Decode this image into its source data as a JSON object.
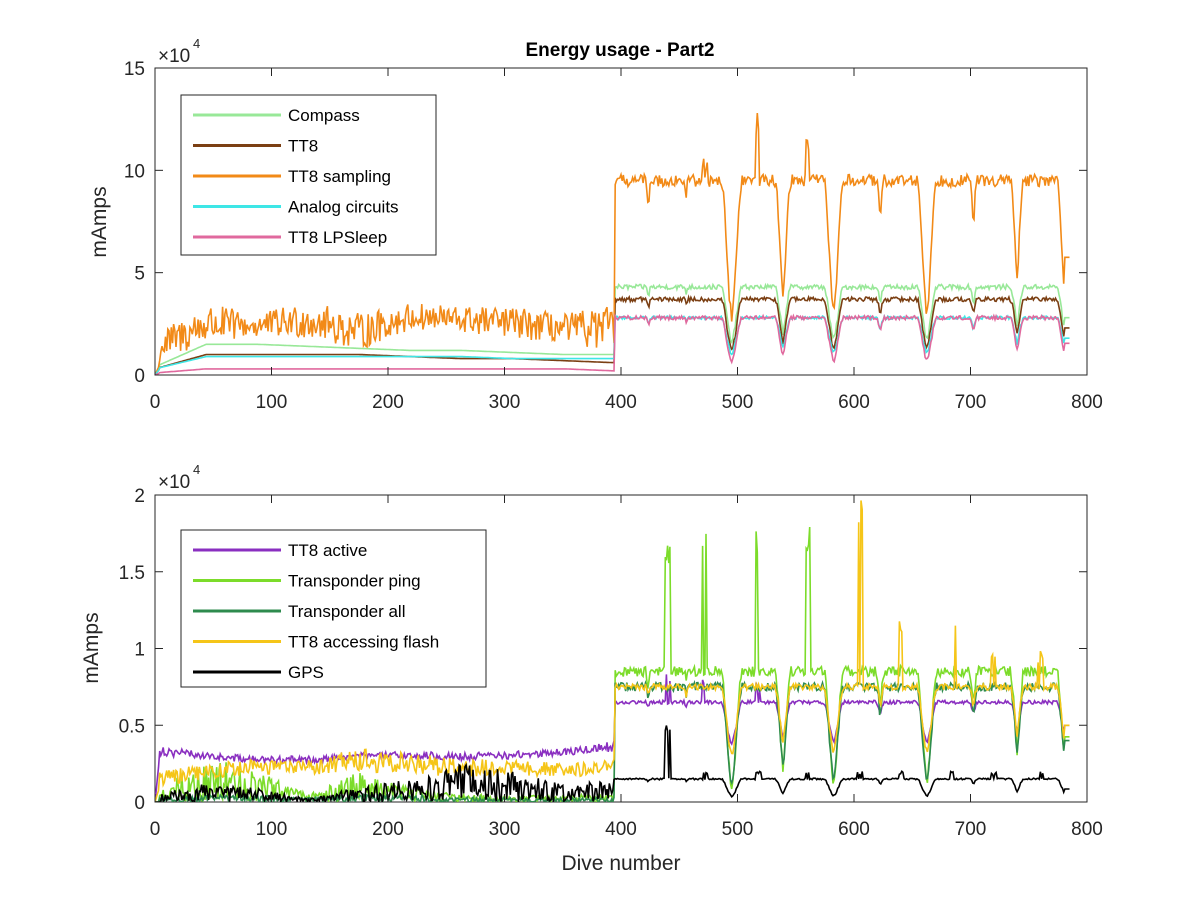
{
  "chart_data": [
    {
      "type": "line",
      "title": "Energy usage - Part2",
      "xlabel": "",
      "ylabel": "mAmps",
      "xlim": [
        0,
        800
      ],
      "ylim": [
        0,
        15
      ],
      "y_scale_factor_label": "×10",
      "y_scale_exponent": "4",
      "x_ticks": [
        "0",
        "100",
        "200",
        "300",
        "400",
        "500",
        "600",
        "700",
        "800"
      ],
      "y_ticks": [
        "0",
        "5",
        "10",
        "15"
      ],
      "legend_position": "top-left",
      "grid": false,
      "series": [
        {
          "name": "Compass",
          "color": "#98e898",
          "low": [
            0.4,
            1.5,
            1.5,
            1.4,
            1.3,
            1.2,
            1.2,
            1.1,
            1.0,
            1.0,
            3.5
          ],
          "high": [
            0.4,
            1.5,
            1.5,
            1.4,
            1.3,
            1.2,
            1.2,
            1.1,
            1.0,
            1.0,
            4.2
          ],
          "trough": 1.3,
          "peak_amp": 4.3,
          "peak_spikes": []
        },
        {
          "name": "TT8",
          "color": "#7b3f13",
          "low": [
            0.3,
            1.0,
            1.0,
            1.0,
            1.0,
            0.9,
            0.8,
            0.8,
            0.7,
            0.6,
            3.0
          ],
          "high": [
            0.3,
            1.0,
            1.0,
            1.0,
            1.0,
            0.9,
            0.8,
            0.8,
            0.7,
            0.6,
            3.8
          ],
          "trough": 0.9,
          "peak_amp": 3.7,
          "peak_spikes": []
        },
        {
          "name": "TT8 sampling",
          "color": "#f28a17",
          "low": [
            0.5,
            1.5,
            1.8,
            1.8,
            1.2,
            2.2,
            2.0,
            1.8,
            1.5,
            1.2,
            8.0
          ],
          "high": [
            2.0,
            3.5,
            3.0,
            3.6,
            3.0,
            3.5,
            3.4,
            3.3,
            3.0,
            3.4,
            9.0
          ],
          "trough": 2.0,
          "peak_amp": 9.5,
          "peak_spikes": [
            0,
            11.0,
            13.0,
            12.0,
            0,
            0,
            0,
            0,
            0
          ]
        },
        {
          "name": "Analog circuits",
          "color": "#3ee6e6",
          "low": [
            0.3,
            0.9,
            0.9,
            0.9,
            0.9,
            0.9,
            0.9,
            0.8,
            0.8,
            0.8,
            2.5
          ],
          "high": [
            0.3,
            0.9,
            0.9,
            0.9,
            0.9,
            0.9,
            0.9,
            0.8,
            0.8,
            0.8,
            3.0
          ],
          "trough": 0.8,
          "peak_amp": 2.8,
          "peak_spikes": []
        },
        {
          "name": "TT8 LPSleep",
          "color": "#e0699e",
          "low": [
            0.1,
            0.3,
            0.3,
            0.3,
            0.3,
            0.3,
            0.3,
            0.3,
            0.3,
            0.2,
            2.8
          ],
          "high": [
            0.1,
            0.3,
            0.3,
            0.3,
            0.3,
            0.3,
            0.3,
            0.3,
            0.3,
            0.2,
            3.2
          ],
          "trough": 0.3,
          "peak_amp": 2.8,
          "peak_spikes": []
        }
      ]
    },
    {
      "type": "line",
      "title": "",
      "xlabel": "Dive number",
      "ylabel": "mAmps",
      "xlim": [
        0,
        800
      ],
      "ylim": [
        0,
        2
      ],
      "y_scale_factor_label": "×10",
      "y_scale_exponent": "4",
      "x_ticks": [
        "0",
        "100",
        "200",
        "300",
        "400",
        "500",
        "600",
        "700",
        "800"
      ],
      "y_ticks": [
        "0",
        "0.5",
        "1",
        "1.5",
        "2"
      ],
      "legend_position": "top-left",
      "grid": false,
      "series": [
        {
          "name": "TT8 active",
          "color": "#8a2fc0",
          "low": [
            0.3,
            0.28,
            0.25,
            0.25,
            0.28,
            0.28,
            0.27,
            0.28,
            0.3,
            0.33,
            0.6
          ],
          "high": [
            0.38,
            0.32,
            0.3,
            0.3,
            0.32,
            0.33,
            0.32,
            0.33,
            0.35,
            0.4,
            0.68
          ],
          "trough": 0.35,
          "peak_amp": 0.65,
          "peak_spikes": [
            0.85,
            0.85,
            0.8,
            0,
            0,
            0,
            0,
            0,
            0
          ]
        },
        {
          "name": "Transponder ping",
          "color": "#7cdc2a",
          "low": [
            0.0,
            0.0,
            0.0,
            0.0,
            0.0,
            0.0,
            0.0,
            0.0,
            0.0,
            0.0,
            0.0
          ],
          "high": [
            0.05,
            0.3,
            0.2,
            0.05,
            0.2,
            0.1,
            0.05,
            0.05,
            0.05,
            0.05,
            0.05
          ],
          "trough": 0.0,
          "peak_amp": 0.85,
          "peak_spikes": [
            1.7,
            1.8,
            1.8,
            1.8,
            0,
            0.9,
            0.9,
            0.9,
            0.9
          ]
        },
        {
          "name": "Transponder all",
          "color": "#2e8b4e",
          "low": [
            0.0,
            0.0,
            0.0,
            0.0,
            0.0,
            0.0,
            0.0,
            0.0,
            0.0,
            0.0,
            0.0
          ],
          "high": [
            0.03,
            0.05,
            0.05,
            0.03,
            0.05,
            0.05,
            0.03,
            0.03,
            0.03,
            0.03,
            0.03
          ],
          "trough": 0.05,
          "peak_amp": 0.75,
          "peak_spikes": []
        },
        {
          "name": "TT8 accessing flash",
          "color": "#f5c518",
          "low": [
            0.1,
            0.15,
            0.18,
            0.18,
            0.18,
            0.18,
            0.16,
            0.18,
            0.15,
            0.2,
            0.7
          ],
          "high": [
            0.2,
            0.25,
            0.28,
            0.28,
            0.35,
            0.32,
            0.28,
            0.28,
            0.25,
            0.28,
            0.8
          ],
          "trough": 0.25,
          "peak_amp": 0.75,
          "peak_spikes": [
            0,
            0,
            0,
            0,
            2.0,
            1.2,
            1.2,
            1.0,
            1.0
          ]
        },
        {
          "name": "GPS",
          "color": "#000000",
          "low": [
            0.0,
            0.0,
            0.0,
            0.0,
            0.0,
            0.0,
            0.0,
            0.0,
            0.0,
            0.0,
            0.0
          ],
          "high": [
            0.05,
            0.12,
            0.1,
            0.02,
            0.1,
            0.15,
            0.25,
            0.2,
            0.12,
            0.15,
            0.2
          ],
          "trough": 0.02,
          "peak_amp": 0.15,
          "peak_spikes": [
            0.5,
            0.2,
            0.2,
            0.2,
            0.2,
            0.2,
            0.2,
            0.2,
            0.2
          ]
        }
      ]
    }
  ]
}
